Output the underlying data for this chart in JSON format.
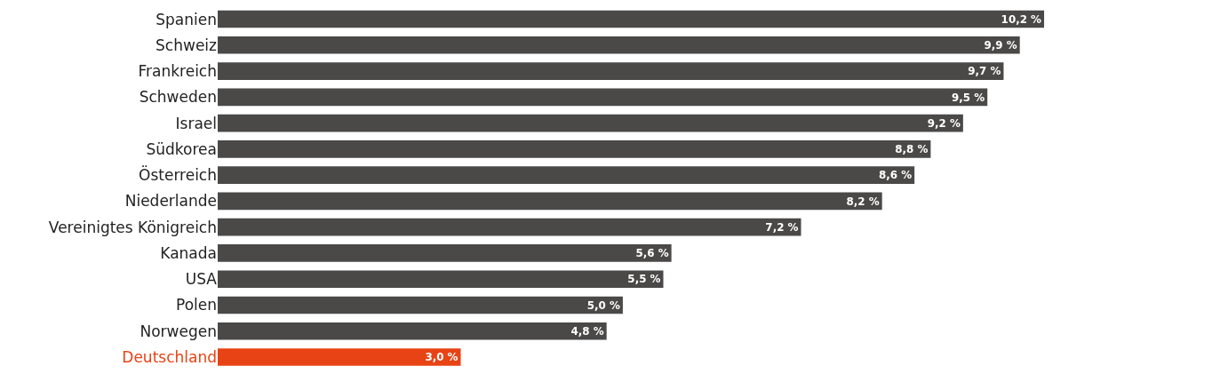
{
  "chart_data": {
    "type": "bar",
    "orientation": "horizontal",
    "categories": [
      "Spanien",
      "Schweiz",
      "Frankreich",
      "Schweden",
      "Israel",
      "Südkorea",
      "Österreich",
      "Niederlande",
      "Vereinigtes Königreich",
      "Kanada",
      "USA",
      "Polen",
      "Norwegen",
      "Deutschland"
    ],
    "values": [
      10.2,
      9.9,
      9.7,
      9.5,
      9.2,
      8.8,
      8.6,
      8.2,
      7.2,
      5.6,
      5.5,
      5.0,
      4.8,
      3.0
    ],
    "value_labels": [
      "10,2 %",
      "9,9 %",
      "9,7 %",
      "9,5 %",
      "9,2 %",
      "8,8 %",
      "8,6 %",
      "8,2 %",
      "7,2 %",
      "5,6 %",
      "5,5 %",
      "5,0 %",
      "4,8 %",
      "3,0 %"
    ],
    "colors": [
      "#4a4948",
      "#4a4948",
      "#4a4948",
      "#4a4948",
      "#4a4948",
      "#4a4948",
      "#4a4948",
      "#4a4948",
      "#4a4948",
      "#4a4948",
      "#4a4948",
      "#4a4948",
      "#4a4948",
      "#e84315"
    ],
    "tick_labels": "y"
  }
}
